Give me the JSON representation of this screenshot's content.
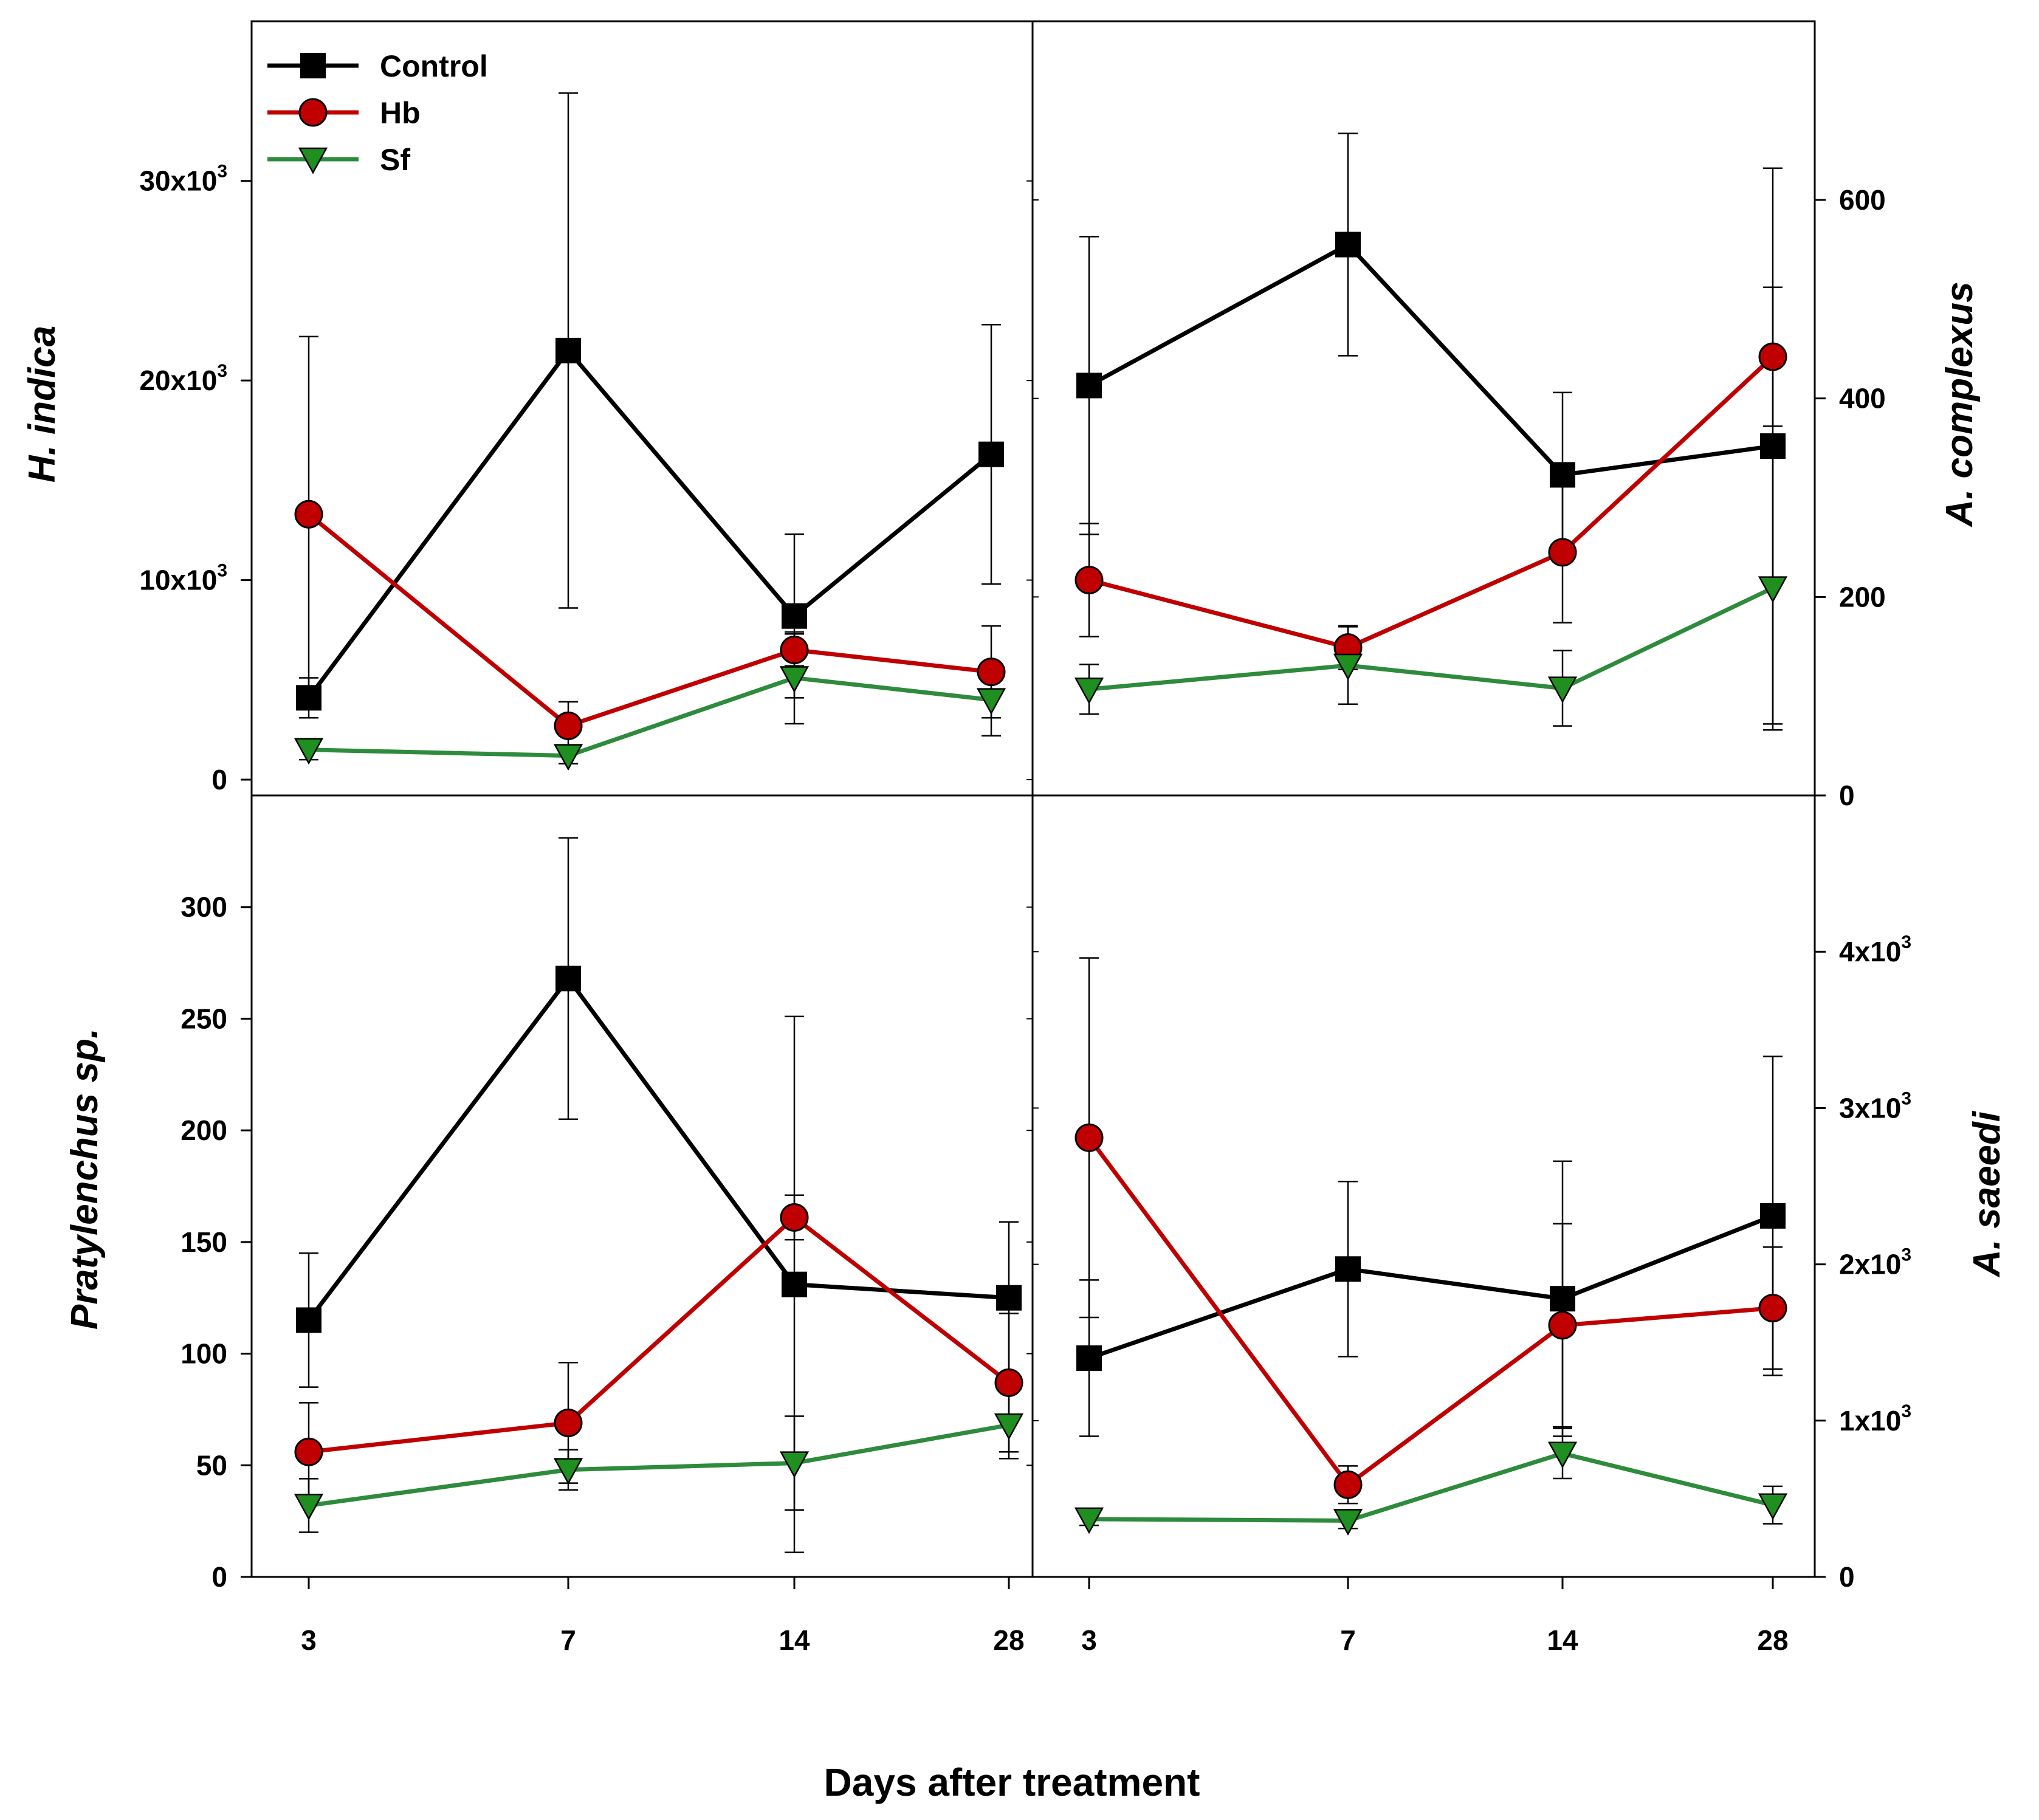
{
  "chart_data": {
    "type": "line",
    "x_title": "Days after treatment",
    "x_ticks": [
      "3",
      "7",
      "14",
      "28"
    ],
    "legend": {
      "placement": "top-left",
      "entries": [
        "Control",
        "Hb",
        "Sf"
      ]
    },
    "series_styles": [
      {
        "name": "Control",
        "line": "#000000",
        "fill": "#000000",
        "marker": "square"
      },
      {
        "name": "Hb",
        "line": "#c00000",
        "fill": "#c00000",
        "marker": "circle"
      },
      {
        "name": "Sf",
        "line": "#2e8b3c",
        "fill": "#1f8f1f",
        "marker": "triangle-down"
      }
    ],
    "panels": [
      {
        "id": "h-indica",
        "ylabel": "H. indica",
        "y_axis_side": "left",
        "ylim": [
          0,
          38000
        ],
        "y_ticks": [
          {
            "value": 0,
            "base": "0",
            "exp": ""
          },
          {
            "value": 10000,
            "base": "10x10",
            "exp": "3"
          },
          {
            "value": 20000,
            "base": "20x10",
            "exp": "3"
          },
          {
            "value": 30000,
            "base": "30x10",
            "exp": "3"
          }
        ],
        "show_x_ticks": false,
        "series": [
          {
            "name": "Control",
            "values": [
              4100,
              21500,
              8200,
              16300
            ],
            "errors": [
              1000,
              12900,
              4100,
              6500
            ]
          },
          {
            "name": "Hb",
            "values": [
              13300,
              2700,
              6500,
              5400
            ],
            "errors": [
              8900,
              1200,
              800,
              2300
            ]
          },
          {
            "name": "Sf",
            "values": [
              1500,
              1200,
              5100,
              4000
            ],
            "errors": [
              500,
              400,
              2300,
              1800
            ]
          }
        ]
      },
      {
        "id": "a-complexus",
        "ylabel": "A. complexus",
        "y_axis_side": "right",
        "ylim": [
          0,
          780
        ],
        "y_ticks": [
          {
            "value": 0,
            "base": "0",
            "exp": ""
          },
          {
            "value": 200,
            "base": "200",
            "exp": ""
          },
          {
            "value": 400,
            "base": "400",
            "exp": ""
          },
          {
            "value": 600,
            "base": "600",
            "exp": ""
          }
        ],
        "show_x_ticks": false,
        "series": [
          {
            "name": "Control",
            "values": [
              413,
              555,
              323,
              352
            ],
            "errors": [
              150,
              112,
              83,
              280
            ]
          },
          {
            "name": "Hb",
            "values": [
              217,
              149,
              245,
              442
            ],
            "errors": [
              57,
              22,
              71,
              70
            ]
          },
          {
            "name": "Sf",
            "values": [
              107,
              131,
              108,
              209
            ],
            "errors": [
              25,
              39,
              38,
              143
            ]
          }
        ]
      },
      {
        "id": "pratylenchus",
        "ylabel": "Pratylenchus sp.",
        "y_axis_side": "left",
        "ylim": [
          0,
          350
        ],
        "y_ticks": [
          {
            "value": 0,
            "base": "0",
            "exp": ""
          },
          {
            "value": 50,
            "base": "50",
            "exp": ""
          },
          {
            "value": 100,
            "base": "100",
            "exp": ""
          },
          {
            "value": 150,
            "base": "150",
            "exp": ""
          },
          {
            "value": 200,
            "base": "200",
            "exp": ""
          },
          {
            "value": 250,
            "base": "250",
            "exp": ""
          },
          {
            "value": 300,
            "base": "300",
            "exp": ""
          }
        ],
        "show_x_ticks": true,
        "series": [
          {
            "name": "Control",
            "values": [
              115,
              268,
              131,
              125
            ],
            "errors": [
              30,
              63,
              120,
              34
            ]
          },
          {
            "name": "Hb",
            "values": [
              56,
              69,
              161,
              87
            ],
            "errors": [
              22,
              27,
              10,
              31
            ]
          },
          {
            "name": "Sf",
            "values": [
              32,
              48,
              51,
              68
            ],
            "errors": [
              12,
              9,
              21,
              15
            ]
          }
        ]
      },
      {
        "id": "a-saeedi",
        "ylabel": "A. saeedi",
        "y_axis_side": "right",
        "ylim": [
          0,
          5000
        ],
        "y_ticks": [
          {
            "value": 0,
            "base": "0",
            "exp": ""
          },
          {
            "value": 1000,
            "base": "1x10",
            "exp": "3"
          },
          {
            "value": 2000,
            "base": "2x10",
            "exp": "3"
          },
          {
            "value": 3000,
            "base": "3x10",
            "exp": "3"
          },
          {
            "value": 4000,
            "base": "4x10",
            "exp": "3"
          }
        ],
        "show_x_ticks": true,
        "series": [
          {
            "name": "Control",
            "values": [
              1400,
              1970,
              1780,
              2310
            ],
            "errors": [
              500,
              560,
              880,
              1020
            ]
          },
          {
            "name": "Hb",
            "values": [
              2810,
              590,
              1610,
              1720
            ],
            "errors": [
              1150,
              120,
              650,
              390
            ]
          },
          {
            "name": "Sf",
            "values": [
              370,
              360,
              790,
              460
            ],
            "errors": [
              40,
              50,
              160,
              120
            ]
          }
        ]
      }
    ]
  }
}
